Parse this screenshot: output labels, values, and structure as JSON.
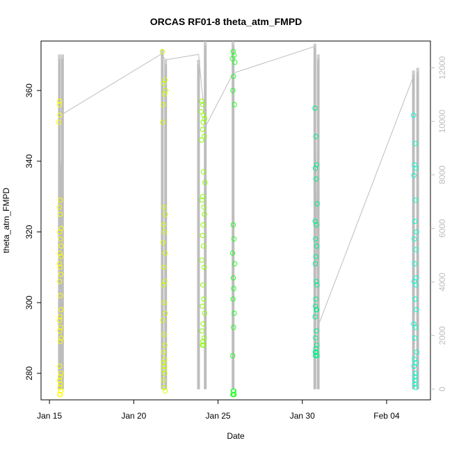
{
  "chart_data": {
    "type": "scatter",
    "title": "ORCAS RF01-8 theta_atm_FMPD",
    "xlabel": "Date",
    "ylabel": "theta_atm_FMPD",
    "x_ticks": [
      "Jan 15",
      "Jan 20",
      "Jan 25",
      "Jan 30",
      "Feb 04"
    ],
    "x_tick_days": [
      0,
      5,
      10,
      15,
      20
    ],
    "xlim_days": [
      -0.5,
      22.6
    ],
    "ylim": [
      272.5,
      374
    ],
    "y_ticks": [
      280,
      300,
      320,
      340,
      360
    ],
    "y2_ticks": [
      0,
      2000,
      4000,
      6000,
      8000,
      10000,
      12000
    ],
    "y2lim": [
      -400,
      13000
    ],
    "grid": false,
    "series": [
      {
        "color": "#ffff00",
        "x": [
          0.6,
          0.6,
          0.55,
          0.62,
          0.65,
          0.58,
          0.64,
          0.7,
          0.6,
          0.66,
          0.7,
          0.62,
          0.68,
          0.59,
          0.63,
          0.67,
          0.61,
          0.65,
          0.69,
          0.63,
          0.6,
          0.66,
          0.62,
          0.7,
          0.64,
          0.61,
          0.67,
          0.63,
          0.6,
          0.65,
          0.62,
          0.68,
          0.66,
          0.64,
          0.61
        ],
        "y": [
          357,
          356,
          351,
          353,
          329,
          327,
          325,
          321,
          320,
          318,
          316,
          314,
          313,
          311,
          310,
          308,
          306,
          302,
          298,
          296,
          295,
          293,
          292,
          290,
          289,
          282,
          280,
          279,
          278,
          277,
          276,
          275,
          275,
          274,
          274
        ]
      },
      {
        "color": "#ccff00",
        "x": [
          6.7,
          6.85,
          6.78,
          6.72,
          6.9,
          6.83,
          6.75,
          6.8,
          6.88,
          6.77,
          6.82,
          6.74,
          6.86,
          6.79,
          6.84,
          6.76,
          6.81,
          6.87,
          6.73,
          6.8,
          6.85,
          6.78,
          6.83,
          6.76,
          6.82,
          6.79,
          6.84,
          6.77,
          6.81,
          6.86
        ],
        "y": [
          371,
          363,
          362,
          351,
          360,
          359,
          356,
          327,
          325,
          322,
          320,
          317,
          314,
          310,
          306,
          305,
          300,
          297,
          295,
          291,
          288,
          286,
          284,
          283,
          282,
          281,
          280,
          278,
          276,
          275
        ]
      },
      {
        "color": "#88ff00",
        "x": [
          9.05,
          9.1,
          9.0,
          9.15,
          9.2,
          9.12,
          9.08,
          9.18,
          9.03,
          9.14,
          9.22,
          9.1,
          9.06,
          9.16,
          9.2,
          9.12,
          9.08,
          9.14,
          9.04,
          9.18,
          9.1,
          9.15,
          9.07,
          9.2,
          9.12,
          9.05,
          9.17,
          9.1,
          9.14,
          9.08
        ],
        "y": [
          357,
          356,
          354,
          353,
          352,
          351,
          349,
          347,
          346,
          337,
          334,
          330,
          329,
          327,
          325,
          322,
          319,
          316,
          312,
          310,
          305,
          301,
          299,
          297,
          294,
          292,
          290,
          289,
          288,
          288
        ]
      },
      {
        "color": "#22ff22",
        "x": [
          10.9,
          10.95,
          10.85,
          11.0,
          10.92,
          10.88,
          10.97,
          10.9,
          10.94,
          10.86,
          10.99,
          10.91,
          10.93,
          10.89,
          10.96,
          10.92,
          10.87,
          10.94,
          10.9,
          10.95,
          10.88,
          10.93
        ],
        "y": [
          371,
          370,
          369,
          368,
          364,
          360,
          356,
          322,
          318,
          314,
          311,
          307,
          304,
          301,
          297,
          293,
          285,
          275,
          275,
          274,
          274,
          274
        ]
      },
      {
        "color": "#00ee88",
        "x": [
          15.75,
          15.8,
          15.85,
          15.78,
          15.82,
          15.88,
          15.76,
          15.84,
          15.79,
          15.86,
          15.81,
          15.77,
          15.83,
          15.87,
          15.8,
          15.78,
          15.85,
          15.82,
          15.76,
          15.84,
          15.79,
          15.86,
          15.81,
          15.77,
          15.83,
          15.88,
          15.8,
          15.78
        ],
        "y": [
          355,
          347,
          339,
          338,
          335,
          328,
          323,
          322,
          318,
          316,
          313,
          311,
          306,
          305,
          301,
          299,
          298,
          298,
          296,
          292,
          290,
          288,
          287,
          286,
          286,
          285,
          285,
          285
        ]
      },
      {
        "color": "#00ffcc",
        "x": [
          21.6,
          21.7,
          21.65,
          21.75,
          21.62,
          21.72,
          21.68,
          21.78,
          21.64,
          21.74,
          21.66,
          21.76,
          21.63,
          21.73,
          21.69,
          21.77,
          21.61,
          21.71,
          21.67,
          21.79,
          21.65,
          21.75,
          21.62,
          21.72,
          21.68,
          21.7,
          21.66,
          21.74
        ],
        "y": [
          353,
          345,
          339,
          338,
          336,
          329,
          323,
          320,
          318,
          315,
          311,
          307,
          306,
          305,
          301,
          298,
          294,
          293,
          290,
          286,
          284,
          283,
          282,
          280,
          279,
          278,
          277,
          276
        ]
      }
    ],
    "altitude_series": {
      "color": "#bdbdbd",
      "axis": "right",
      "spikes": [
        {
          "x": 0.6,
          "top": 12500,
          "bottom": 0
        },
        {
          "x": 0.78,
          "top": 12500,
          "bottom": 0
        },
        {
          "x": 0.7,
          "top": 8500,
          "bottom": 0
        },
        {
          "x": 6.7,
          "top": 12700,
          "bottom": 0
        },
        {
          "x": 6.9,
          "top": 12300,
          "bottom": 0
        },
        {
          "x": 8.85,
          "top": 12300,
          "bottom": 0
        },
        {
          "x": 9.25,
          "top": 13000,
          "bottom": 0
        },
        {
          "x": 10.9,
          "top": 13000,
          "bottom": 0
        },
        {
          "x": 15.75,
          "top": 12900,
          "bottom": 0
        },
        {
          "x": 15.95,
          "top": 12500,
          "bottom": 0
        },
        {
          "x": 21.6,
          "top": 11900,
          "bottom": 0
        },
        {
          "x": 21.85,
          "top": 12000,
          "bottom": 0
        }
      ],
      "connectors": {
        "x": [
          0.85,
          6.6,
          6.9,
          8.85,
          9.25,
          10.9,
          15.75,
          15.9,
          21.6
        ],
        "y": [
          10300,
          12500,
          12300,
          12500,
          9800,
          11800,
          12800,
          2300,
          11700
        ]
      }
    }
  }
}
